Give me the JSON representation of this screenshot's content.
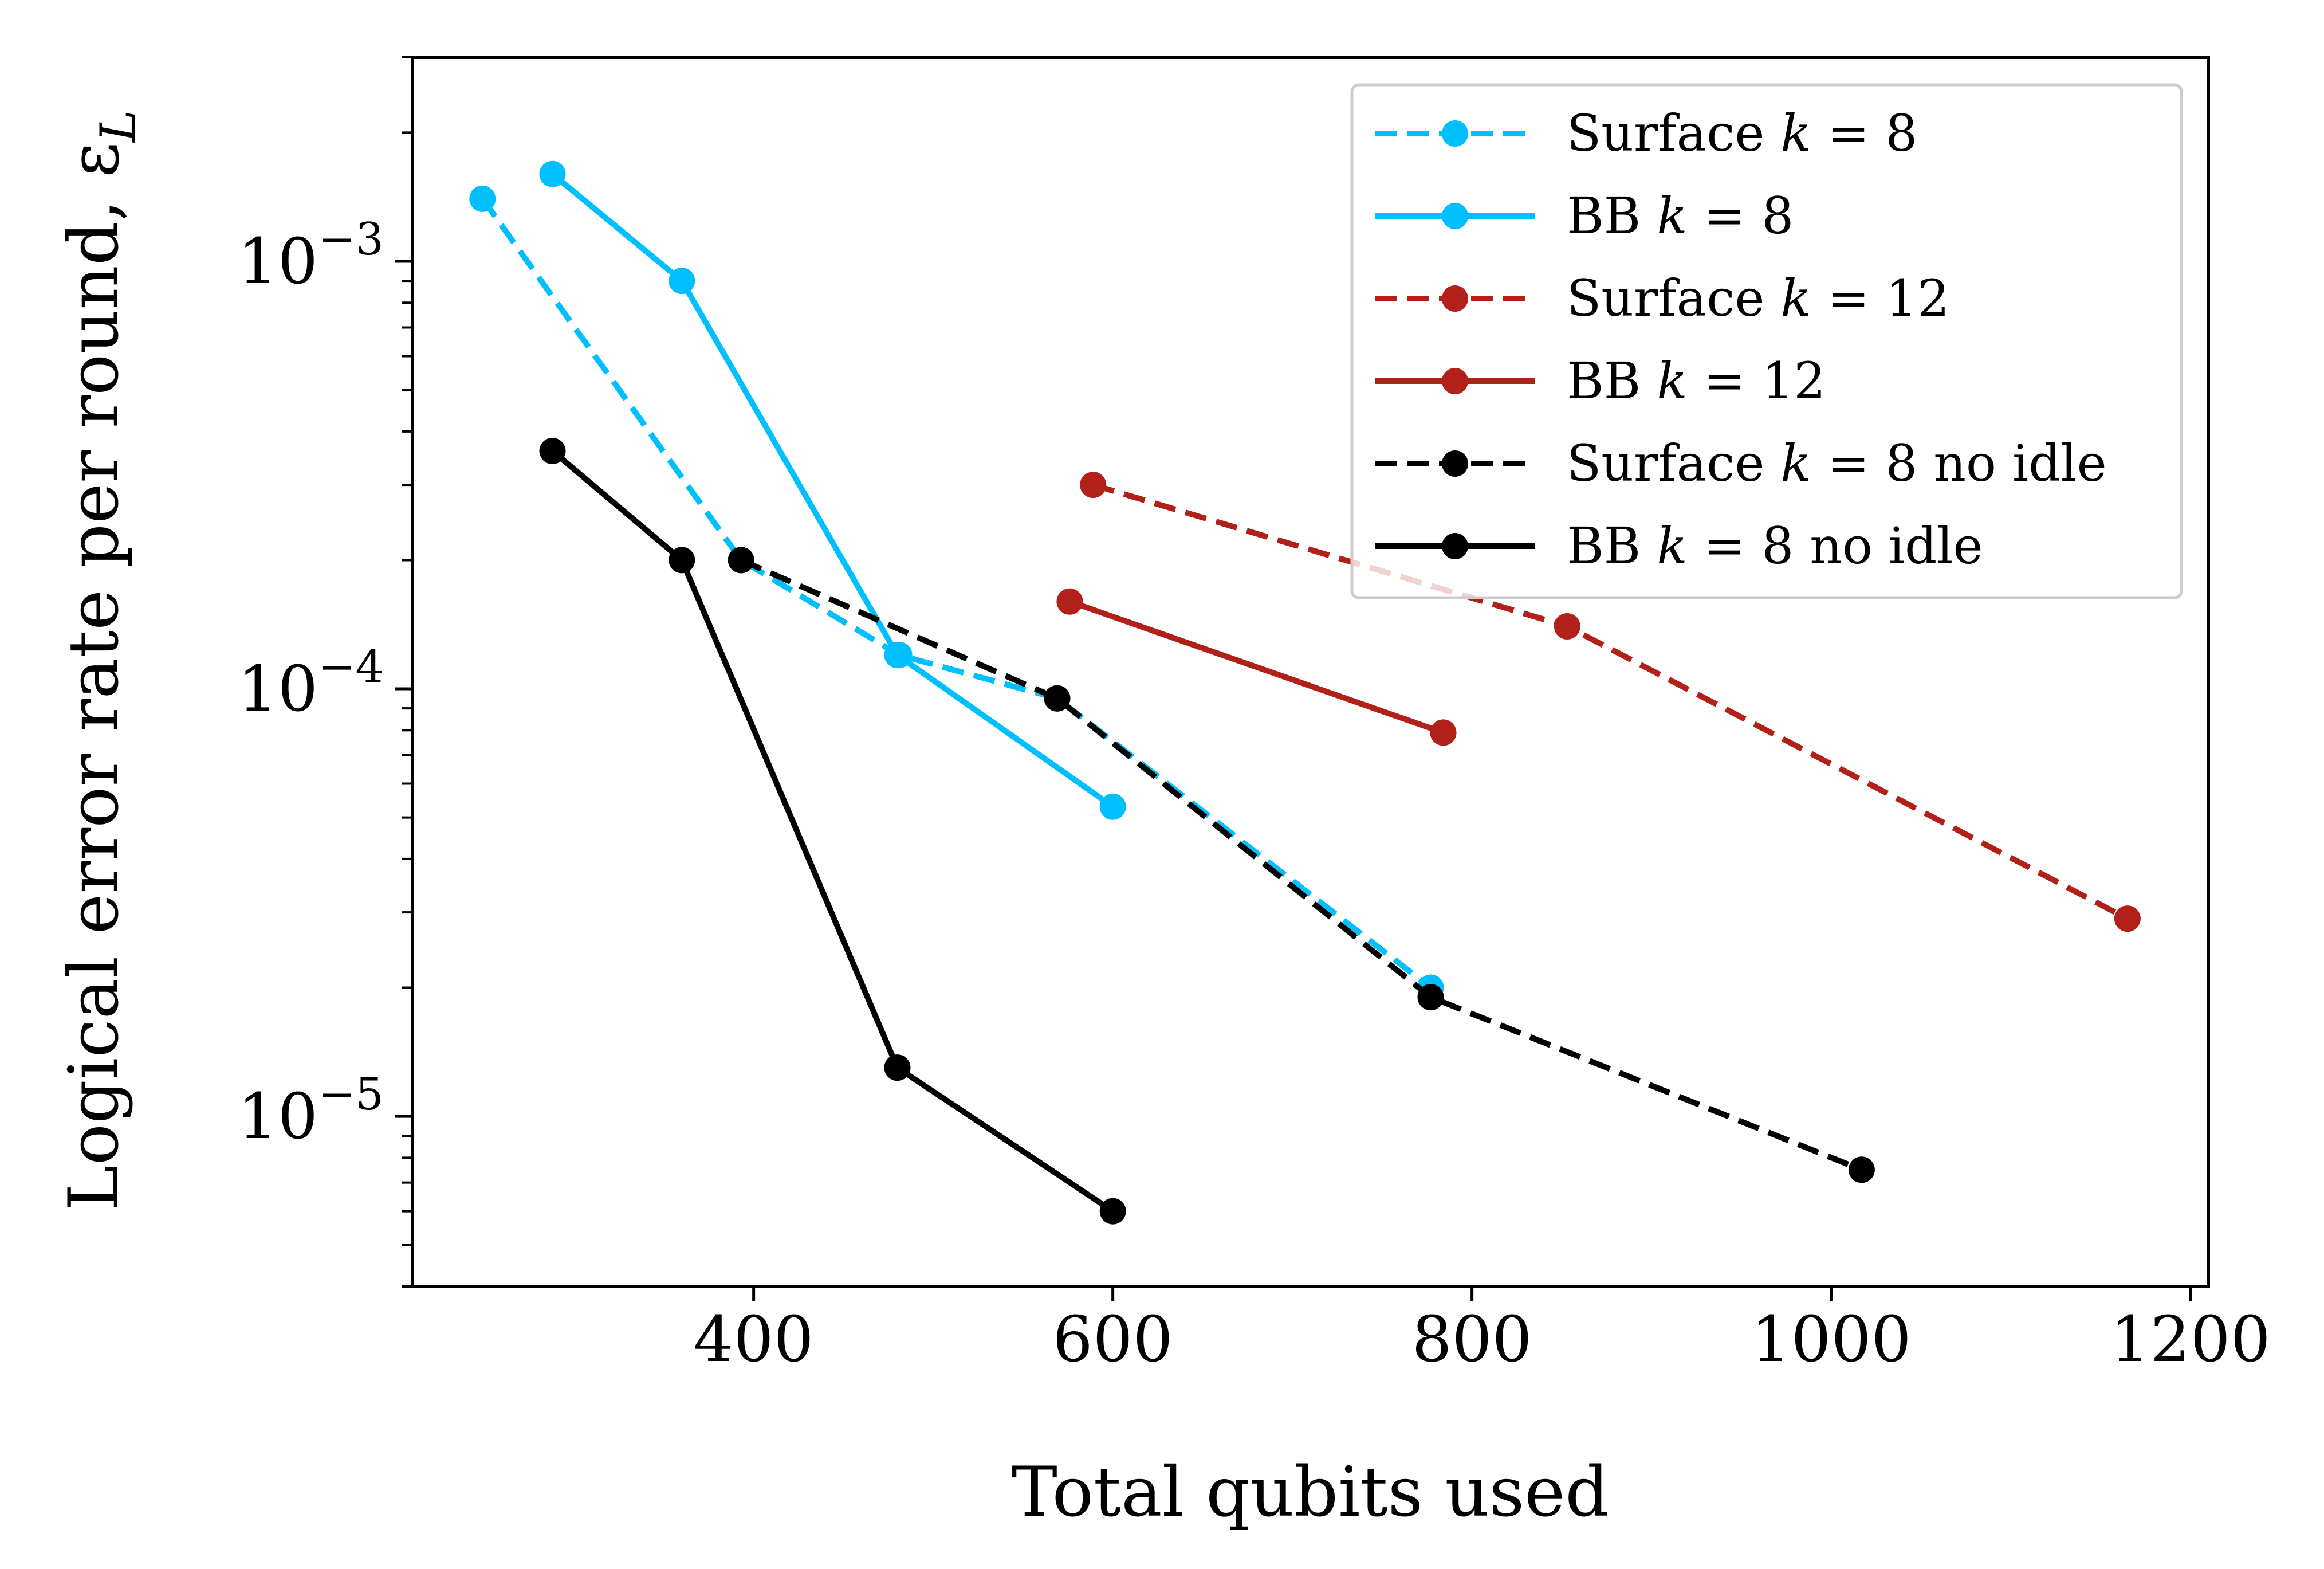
{
  "chart_data": {
    "type": "line",
    "title": "",
    "xlabel": "Total qubits used",
    "ylabel": "Logical error rate per round, ε",
    "ylabel_subscript": "L",
    "xscale": "linear",
    "yscale": "log",
    "xlim": [
      210,
      1210
    ],
    "ylim": [
      4e-06,
      0.003
    ],
    "xticks": [
      400,
      600,
      800,
      1000,
      1200
    ],
    "xtick_labels": [
      "400",
      "600",
      "800",
      "1000",
      "1200"
    ],
    "yticks_major": [
      1e-05,
      0.0001,
      0.001
    ],
    "ytick_labels": [
      {
        "base": "10",
        "exp": "−5"
      },
      {
        "base": "10",
        "exp": "−4"
      },
      {
        "base": "10",
        "exp": "−3"
      }
    ],
    "grid": false,
    "legend_position": "upper-right",
    "series": [
      {
        "name": "Surface k = 8",
        "label_pre": "Surface ",
        "label_k": "k",
        "label_post": " = 8",
        "color": "#00bfff",
        "dash": true,
        "x": [
          249,
          393,
          481,
          569,
          777
        ],
        "y": [
          0.0014,
          0.0002,
          0.00012,
          9.5e-05,
          2e-05
        ]
      },
      {
        "name": "BB k = 8",
        "label_pre": "BB ",
        "label_k": "k",
        "label_post": " = 8",
        "color": "#00bfff",
        "dash": false,
        "x": [
          288,
          360,
          480,
          600
        ],
        "y": [
          0.0016,
          0.0009,
          0.00012,
          5.3e-05
        ]
      },
      {
        "name": "Surface k = 12",
        "label_pre": "Surface ",
        "label_k": "k",
        "label_post": " = 12",
        "color": "#b2201a",
        "dash": true,
        "x": [
          589,
          853,
          1165
        ],
        "y": [
          0.0003,
          0.00014,
          2.9e-05
        ]
      },
      {
        "name": "BB k = 12",
        "label_pre": "BB ",
        "label_k": "k",
        "label_post": " = 12",
        "color": "#b2201a",
        "dash": false,
        "x": [
          576,
          784
        ],
        "y": [
          0.00016,
          7.9e-05
        ]
      },
      {
        "name": "Surface k = 8 no idle",
        "label_pre": "Surface ",
        "label_k": "k",
        "label_post": " = 8 no idle",
        "color": "#000000",
        "dash": true,
        "x": [
          393,
          569,
          777,
          1017
        ],
        "y": [
          0.0002,
          9.5e-05,
          1.9e-05,
          7.5e-06
        ]
      },
      {
        "name": "BB k = 8 no idle",
        "label_pre": "BB ",
        "label_k": "k",
        "label_post": " = 8 no idle",
        "color": "#000000",
        "dash": false,
        "x": [
          288,
          360,
          480,
          600
        ],
        "y": [
          0.00036,
          0.0002,
          1.3e-05,
          6e-06
        ]
      }
    ]
  }
}
